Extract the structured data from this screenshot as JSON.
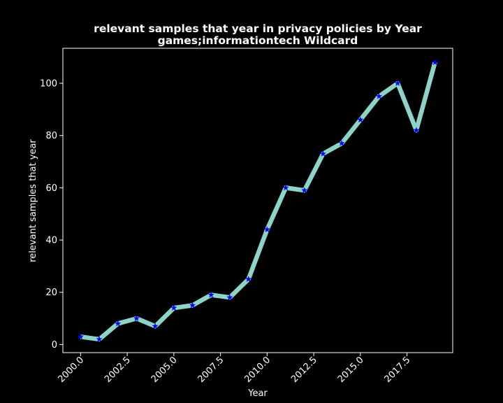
{
  "chart_data": {
    "type": "line",
    "title": "relevant samples that year in privacy policies by Year",
    "subtitle": "games;informationtech Wildcard",
    "xlabel": "Year",
    "ylabel": "relevant samples that year",
    "xlim": [
      1999.05,
      2019.95
    ],
    "ylim": [
      -3.1,
      113.4
    ],
    "x_ticks": [
      2000,
      2002.5,
      2005,
      2007.5,
      2010,
      2012.5,
      2015,
      2017.5
    ],
    "x_tick_labels": [
      "2000.0",
      "2002.5",
      "2005.0",
      "2007.5",
      "2010.0",
      "2012.5",
      "2015.0",
      "2017.5"
    ],
    "y_ticks": [
      0,
      20,
      40,
      60,
      80,
      100
    ],
    "y_tick_labels": [
      "0",
      "20",
      "40",
      "60",
      "80",
      "100"
    ],
    "grid": false,
    "legend": "none",
    "colors": {
      "background": "#000000",
      "line": "#8dd3c7",
      "marker": "#0000ff",
      "text": "#ffffff",
      "axes": "#ffffff"
    },
    "series": [
      {
        "x": [
          2000,
          2001,
          2002,
          2003,
          2004,
          2005,
          2006,
          2007,
          2008,
          2009,
          2010,
          2011,
          2012,
          2013,
          2014,
          2015,
          2016,
          2017,
          2018,
          2019
        ],
        "values": [
          3,
          2,
          8,
          10,
          7,
          14,
          15,
          19,
          18,
          25,
          44,
          60,
          59,
          73,
          77,
          86,
          95,
          100,
          82,
          108
        ]
      }
    ]
  }
}
